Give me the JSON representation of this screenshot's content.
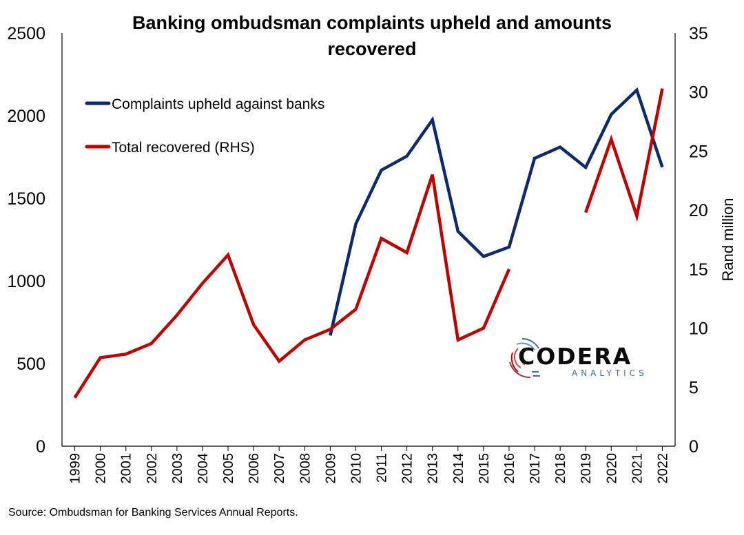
{
  "chart_data": {
    "type": "line",
    "title_line1": "Banking ombudsman complaints upheld and amounts",
    "title_line2": "recovered",
    "categories": [
      "1999",
      "2000",
      "2001",
      "2002",
      "2003",
      "2004",
      "2005",
      "2006",
      "2007",
      "2008",
      "2009",
      "2010",
      "2011",
      "2012",
      "2013",
      "2014",
      "2015",
      "2016",
      "2017",
      "2018",
      "2019",
      "2020",
      "2021",
      "2022"
    ],
    "y_left": {
      "ylim": [
        0,
        2500
      ],
      "ticks": [
        0,
        500,
        1000,
        1500,
        2000,
        2500
      ],
      "label": ""
    },
    "y_right": {
      "ylim": [
        0,
        35
      ],
      "ticks": [
        0,
        5,
        10,
        15,
        20,
        25,
        30,
        35
      ],
      "label": "Rand million"
    },
    "series": [
      {
        "name": "Complaints upheld against banks",
        "axis": "left",
        "color": "#0d2a6b",
        "values": [
          null,
          null,
          null,
          null,
          null,
          null,
          null,
          null,
          null,
          null,
          670,
          1345,
          1670,
          1755,
          1975,
          1300,
          1148,
          1205,
          1742,
          1810,
          1687,
          2008,
          2155,
          1688
        ]
      },
      {
        "name": "Total recovered (RHS)",
        "axis": "right",
        "color": "#c00000",
        "values": [
          4.1,
          7.5,
          7.8,
          8.7,
          11.1,
          13.8,
          16.2,
          10.3,
          7.2,
          9.0,
          9.9,
          11.6,
          17.6,
          16.4,
          23.0,
          9.0,
          10.0,
          15.0,
          null,
          null,
          19.8,
          26.0,
          19.5,
          30.3
        ]
      }
    ],
    "legend_position": "top-left",
    "grid": false
  },
  "source_text": "Source: Ombudsman for Banking Services Annual Reports.",
  "logo": {
    "word": "CODERA",
    "sub": "ANALYTICS"
  }
}
